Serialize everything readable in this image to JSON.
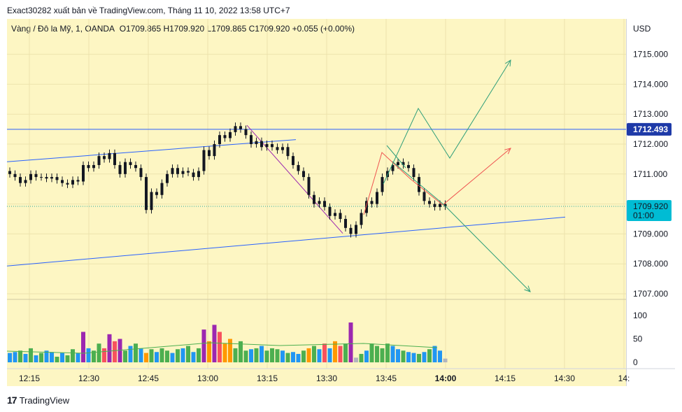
{
  "header": {
    "publisher": "Exact30282 xuất bản về TradingView.com, Tháng 11 10, 2022 13:58 UTC+7"
  },
  "legend": {
    "symbol": "Vàng / Đô la Mỹ, 1, OANDA",
    "ohlc": "O1709.865  H1709.920  L1709.865  C1709.920  +0.055 (+0.00%)"
  },
  "currency": "USD",
  "horizontal_line_label": "1712.493",
  "last_price": {
    "price": "1709.920",
    "countdown": "01:00"
  },
  "logo": {
    "text": "TradingView"
  },
  "colors": {
    "background": "#fdf6c3",
    "up": "#26a69a",
    "down": "#ef5350",
    "hline": "#2962ff",
    "label": "#1e3aa8",
    "last": "#00bcd4"
  },
  "chart_data": {
    "type": "candlestick",
    "interval_minutes": 1,
    "y_axis": {
      "ticks": [
        "1707.000",
        "1708.000",
        "1709.000",
        "1710.000",
        "1711.000",
        "1712.000",
        "1713.000",
        "1714.000",
        "1715.000"
      ],
      "range": [
        1706.7,
        1715.8
      ]
    },
    "x_axis": {
      "ticks": [
        "12:15",
        "12:30",
        "12:45",
        "13:00",
        "13:15",
        "13:30",
        "13:45",
        "14:00",
        "14:15",
        "14:30",
        "14:"
      ]
    },
    "volume_axis": {
      "ticks": [
        "0",
        "50",
        "100"
      ]
    },
    "closes": [
      1711.0,
      1710.9,
      1710.7,
      1710.8,
      1711.0,
      1710.9,
      1710.9,
      1710.85,
      1710.9,
      1710.8,
      1710.7,
      1710.65,
      1710.8,
      1710.75,
      1711.3,
      1711.2,
      1711.3,
      1711.6,
      1711.5,
      1711.7,
      1711.3,
      1711.0,
      1711.4,
      1711.3,
      1711.2,
      1710.9,
      1709.8,
      1710.4,
      1710.3,
      1710.7,
      1711.0,
      1711.2,
      1711.0,
      1711.1,
      1711.05,
      1710.9,
      1711.1,
      1711.8,
      1711.6,
      1712.0,
      1712.3,
      1712.2,
      1712.4,
      1712.6,
      1712.5,
      1712.3,
      1712.0,
      1712.1,
      1711.9,
      1712.0,
      1711.9,
      1711.8,
      1711.9,
      1711.6,
      1711.3,
      1711.1,
      1710.9,
      1710.3,
      1710.0,
      1710.1,
      1709.9,
      1709.6,
      1709.7,
      1709.5,
      1709.2,
      1709.0,
      1709.3,
      1709.7,
      1710.1,
      1710.0,
      1710.4,
      1710.9,
      1711.1,
      1711.3,
      1711.4,
      1711.3,
      1711.2,
      1710.9,
      1710.4,
      1710.1,
      1710.0,
      1709.9,
      1710.0,
      1709.92
    ],
    "volume_levels": [
      20,
      22,
      25,
      18,
      30,
      15,
      20,
      25,
      22,
      12,
      20,
      15,
      28,
      20,
      65,
      30,
      25,
      40,
      30,
      60,
      45,
      50,
      25,
      35,
      40,
      30,
      20,
      28,
      22,
      30,
      25,
      20,
      28,
      30,
      35,
      22,
      30,
      70,
      45,
      80,
      65,
      40,
      50,
      30,
      45,
      25,
      28,
      30,
      35,
      25,
      30,
      28,
      25,
      20,
      22,
      18,
      25,
      30,
      35,
      28,
      40,
      30,
      45,
      35,
      40,
      85,
      10,
      18,
      25,
      40,
      35,
      30,
      40,
      35,
      28,
      25,
      22,
      20,
      18,
      22,
      28,
      35,
      25,
      8
    ],
    "volume_colors": [
      "b",
      "b",
      "g",
      "b",
      "g",
      "b",
      "g",
      "b",
      "b",
      "g",
      "b",
      "g",
      "g",
      "b",
      "p",
      "b",
      "g",
      "g",
      "r",
      "p",
      "r",
      "p",
      "g",
      "b",
      "g",
      "b",
      "o",
      "g",
      "b",
      "g",
      "g",
      "b",
      "g",
      "b",
      "g",
      "b",
      "g",
      "p",
      "o",
      "p",
      "r",
      "o",
      "o",
      "g",
      "g",
      "g",
      "b",
      "g",
      "b",
      "g",
      "g",
      "g",
      "b",
      "g",
      "b",
      "b",
      "g",
      "o",
      "g",
      "b",
      "r",
      "b",
      "o",
      "r",
      "g",
      "p",
      "s",
      "g",
      "b",
      "g",
      "g",
      "g",
      "g",
      "b",
      "b",
      "g",
      "b",
      "b",
      "g",
      "b",
      "g",
      "b",
      "b",
      "s"
    ]
  }
}
